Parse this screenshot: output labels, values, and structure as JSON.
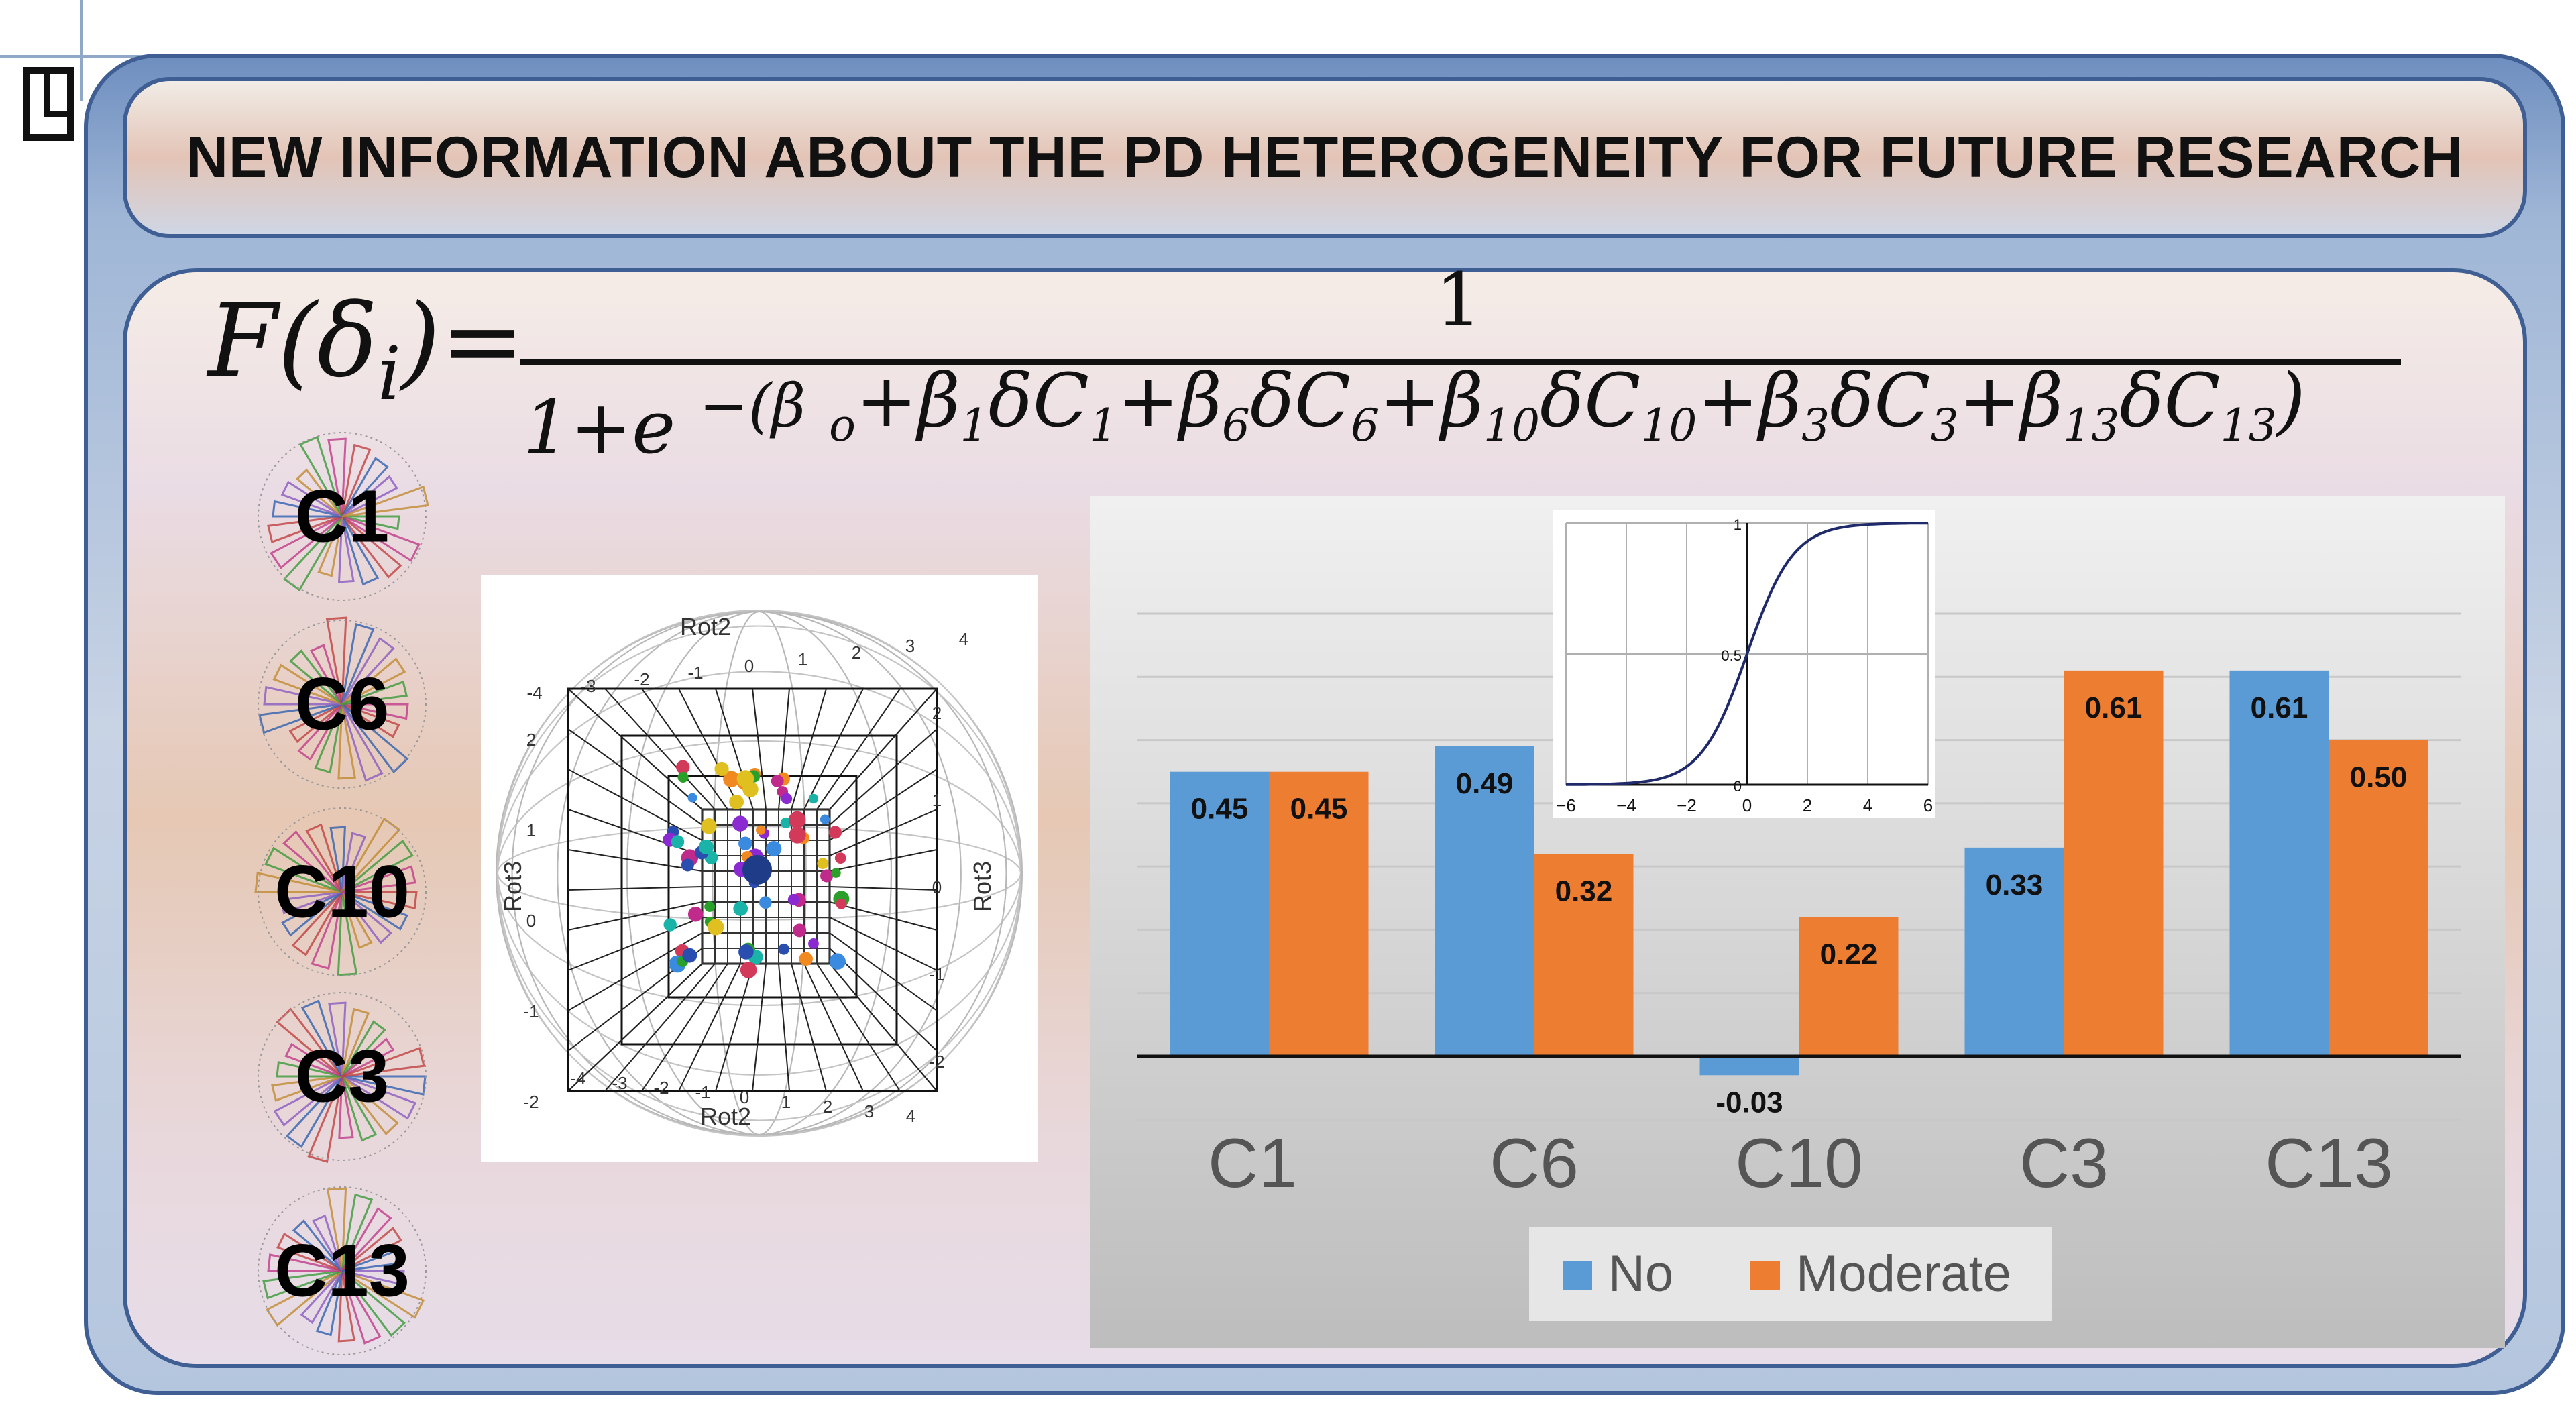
{
  "header": {
    "title": "NEW INFORMATION ABOUT THE PD HETEROGENEITY FOR FUTURE RESEARCH"
  },
  "formula": {
    "lhs": "F(δ",
    "lhs_sub": "i",
    "lhs_close": ")=",
    "numerator": "1",
    "denominator_base": "1+e",
    "exponent": "−(β",
    "exp_parts": [
      {
        "t": "o",
        "sub": true
      },
      {
        "t": "+β",
        "sub": false
      },
      {
        "t": "1",
        "sub": true
      },
      {
        "t": "δC",
        "sub": false
      },
      {
        "t": "1",
        "sub": true
      },
      {
        "t": "+β",
        "sub": false
      },
      {
        "t": "6",
        "sub": true
      },
      {
        "t": "δC",
        "sub": false
      },
      {
        "t": "6",
        "sub": true
      },
      {
        "t": "+β",
        "sub": false
      },
      {
        "t": "10",
        "sub": true
      },
      {
        "t": "δC",
        "sub": false
      },
      {
        "t": "10",
        "sub": true
      },
      {
        "t": "+β",
        "sub": false
      },
      {
        "t": "3",
        "sub": true
      },
      {
        "t": "δC",
        "sub": false
      },
      {
        "t": "3",
        "sub": true
      },
      {
        "t": "+β",
        "sub": false
      },
      {
        "t": "13",
        "sub": true
      },
      {
        "t": "δC",
        "sub": false
      },
      {
        "t": "13",
        "sub": true
      },
      {
        "t": ")",
        "sub": false
      }
    ]
  },
  "clusters": [
    {
      "label": "C1"
    },
    {
      "label": "C6"
    },
    {
      "label": "C10"
    },
    {
      "label": "C3"
    },
    {
      "label": "C13"
    }
  ],
  "scatter3d": {
    "axis_top": "Rot2",
    "axis_bottom": "Rot2",
    "axis_left": "Rot3",
    "axis_right": "Rot3",
    "top_ticks": [
      "-4",
      "-3",
      "-2",
      "-1",
      "0",
      "1",
      "2",
      "3",
      "4"
    ],
    "bottom_ticks": [
      "-4",
      "-3",
      "-2",
      "-1",
      "0",
      "1",
      "2",
      "3",
      "4"
    ],
    "left_ticks": [
      "2",
      "1",
      "0",
      "-1",
      "-2"
    ],
    "right_ticks": [
      "2",
      "1",
      "0",
      "-1",
      "-2"
    ]
  },
  "chart_data": [
    {
      "type": "bar",
      "categories": [
        "C1",
        "C6",
        "C10",
        "C3",
        "C13"
      ],
      "series": [
        {
          "name": "No",
          "values": [
            0.45,
            0.49,
            -0.03,
            0.33,
            0.61
          ],
          "color": "#5b9bd5"
        },
        {
          "name": "Moderate",
          "values": [
            0.45,
            0.32,
            0.22,
            0.61,
            0.5
          ],
          "color": "#ed7d31"
        }
      ],
      "value_labels": {
        "No": [
          "0.45",
          "0.49",
          "-0.03",
          "0.33",
          "0.61"
        ],
        "Moderate": [
          "0.45",
          "0.32",
          "0.22",
          "0.61",
          "0.50"
        ]
      },
      "ylim": [
        -0.2,
        0.7
      ],
      "grid": true,
      "legend": "bottom"
    },
    {
      "type": "line",
      "series": [
        {
          "name": "",
          "function": "logistic 1/(1+e^-x)"
        }
      ],
      "x_ticks": [
        "-6",
        "-4",
        "-2",
        "0",
        "2",
        "4",
        "6"
      ],
      "y_ticks": [
        "0",
        "0.5",
        "1"
      ],
      "xlim": [
        -6,
        6
      ],
      "ylim": [
        0,
        1
      ],
      "grid": true
    }
  ]
}
